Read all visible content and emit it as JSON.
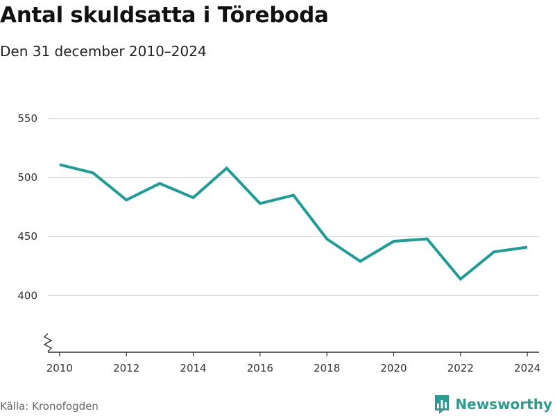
{
  "header": {
    "title": "Antal skuldsatta i Töreboda",
    "subtitle": "Den 31 december 2010–2024"
  },
  "footer": {
    "source": "Källa: Kronofogden",
    "brand": "Newsworthy"
  },
  "colors": {
    "line": "#1a9e96",
    "grid": "#d9d9d9",
    "axis": "#333333",
    "brand": "#2a9d8f"
  },
  "chart_data": {
    "type": "line",
    "title": "Antal skuldsatta i Töreboda",
    "subtitle": "Den 31 december 2010–2024",
    "xlabel": "",
    "ylabel": "",
    "x": [
      2010,
      2011,
      2012,
      2013,
      2014,
      2015,
      2016,
      2017,
      2018,
      2019,
      2020,
      2021,
      2022,
      2023,
      2024
    ],
    "series": [
      {
        "name": "Antal skuldsatta",
        "values": [
          511,
          504,
          481,
          495,
          483,
          508,
          478,
          485,
          448,
          429,
          446,
          448,
          414,
          437,
          441
        ]
      }
    ],
    "xticks": [
      "2010",
      "2012",
      "2014",
      "2016",
      "2018",
      "2020",
      "2022",
      "2024"
    ],
    "yticks": [
      "400",
      "450",
      "500",
      "550"
    ],
    "ylim": [
      352,
      550
    ],
    "xlim": [
      2009.65,
      2024.35
    ],
    "grid": true,
    "axis_break": true
  }
}
